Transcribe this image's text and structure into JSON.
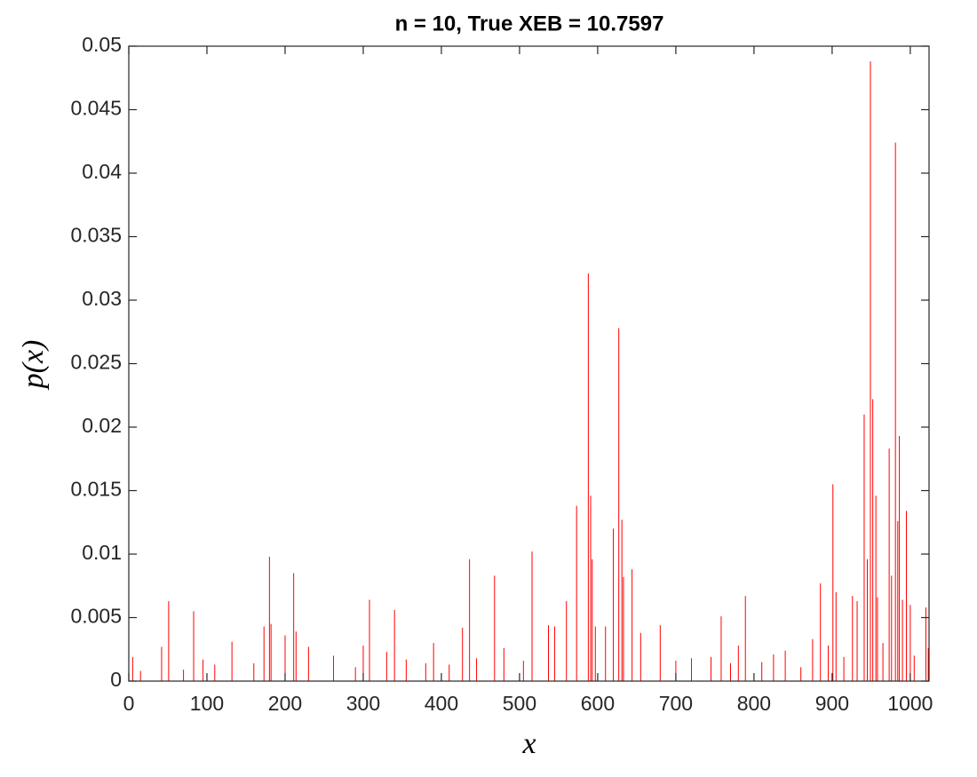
{
  "chart_data": {
    "type": "bar",
    "title": "n = 10, True XEB = 10.7597",
    "xlabel": "x",
    "ylabel": "p(x)",
    "x": [
      5,
      15,
      42,
      51,
      70,
      83,
      95,
      110,
      132,
      160,
      173,
      180,
      182,
      200,
      211,
      214,
      230,
      262,
      290,
      300,
      308,
      330,
      340,
      355,
      380,
      390,
      410,
      427,
      436,
      445,
      468,
      480,
      505,
      516,
      537,
      545,
      560,
      573,
      588,
      591,
      593,
      597,
      610,
      620,
      627,
      631,
      633,
      644,
      655,
      680,
      700,
      720,
      745,
      758,
      770,
      780,
      789,
      810,
      825,
      840,
      860,
      875,
      885,
      895,
      901,
      905,
      915,
      926,
      932,
      941,
      945,
      949,
      952,
      956,
      958,
      965,
      973,
      976,
      981,
      984,
      986,
      990,
      995,
      1000,
      1005,
      1020,
      1023
    ],
    "values": [
      0.0019,
      0.0008,
      0.0027,
      0.0063,
      0.0009,
      0.0055,
      0.0017,
      0.0013,
      0.0031,
      0.0014,
      0.0043,
      0.0098,
      0.0045,
      0.0036,
      0.0085,
      0.0039,
      0.0027,
      0.002,
      0.0011,
      0.0028,
      0.0064,
      0.0023,
      0.0056,
      0.0017,
      0.0014,
      0.003,
      0.0013,
      0.0042,
      0.0096,
      0.0018,
      0.0083,
      0.0026,
      0.0016,
      0.0102,
      0.0044,
      0.0043,
      0.0063,
      0.0138,
      0.0321,
      0.0146,
      0.0096,
      0.0043,
      0.0043,
      0.012,
      0.0278,
      0.0127,
      0.0082,
      0.0088,
      0.0038,
      0.0044,
      0.0016,
      0.0018,
      0.0019,
      0.0051,
      0.0014,
      0.0028,
      0.0067,
      0.0015,
      0.0021,
      0.0024,
      0.0011,
      0.0033,
      0.0077,
      0.0028,
      0.0155,
      0.007,
      0.0019,
      0.0067,
      0.0063,
      0.021,
      0.0096,
      0.0488,
      0.0222,
      0.0146,
      0.0066,
      0.003,
      0.0183,
      0.0083,
      0.0424,
      0.0126,
      0.0193,
      0.0064,
      0.0134,
      0.006,
      0.002,
      0.0058,
      0.0026
    ],
    "color": "#ff0000",
    "xlim": [
      0,
      1024
    ],
    "xticks": [
      0,
      100,
      200,
      300,
      400,
      500,
      600,
      700,
      800,
      900,
      1000
    ],
    "ylim": [
      0,
      0.05
    ],
    "yticks": [
      0,
      0.005,
      0.01,
      0.015,
      0.02,
      0.025,
      0.03,
      0.035,
      0.04,
      0.045,
      0.05
    ],
    "grid": false
  }
}
